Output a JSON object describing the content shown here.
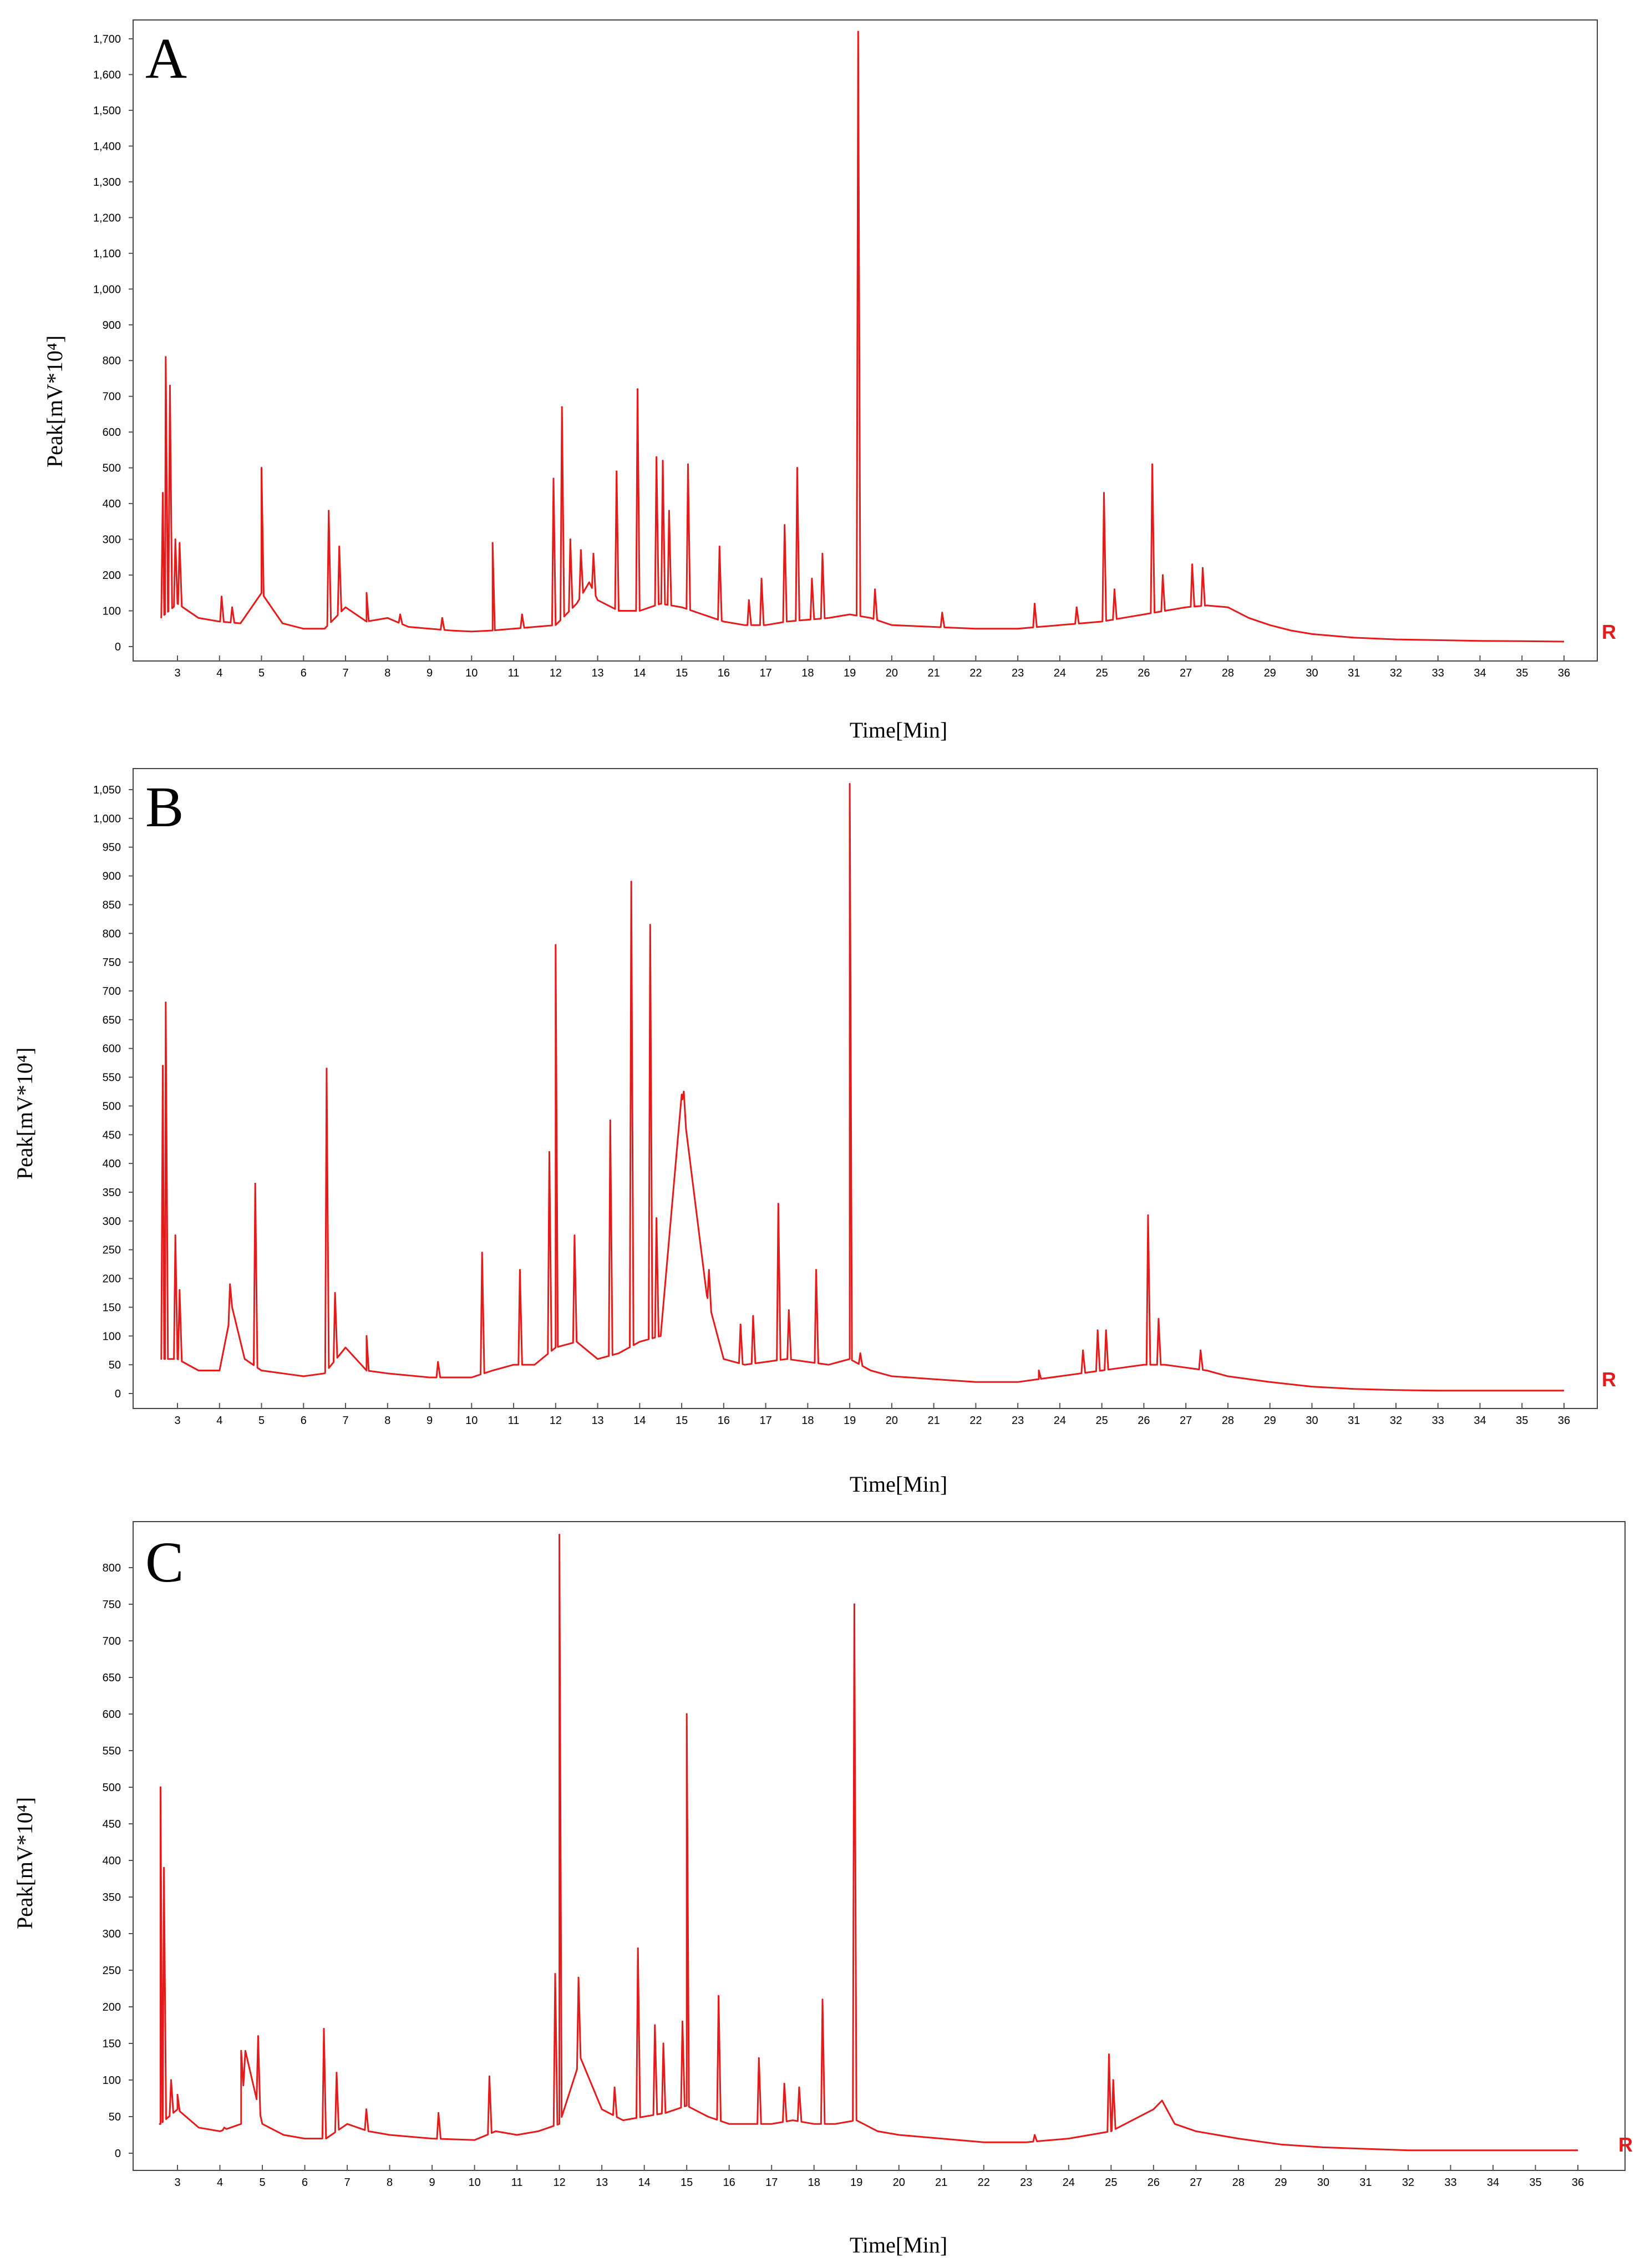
{
  "figure": {
    "line_color": "#e51a1a",
    "baseline_marker": "R"
  },
  "chart_data": [
    {
      "type": "line",
      "panel_label": "A",
      "xlabel": "Time[Min]",
      "ylabel": "Peak[mV*10⁴]",
      "xlim": [
        2.5,
        36.5
      ],
      "ylim": [
        0,
        1750
      ],
      "xticks": [
        3,
        4,
        5,
        6,
        7,
        8,
        9,
        10,
        11,
        12,
        13,
        14,
        15,
        16,
        17,
        18,
        19,
        20,
        21,
        22,
        23,
        24,
        25,
        26,
        27,
        28,
        29,
        30,
        31,
        32,
        33,
        34,
        35,
        36
      ],
      "yticks": [
        0,
        100,
        200,
        300,
        400,
        500,
        600,
        700,
        800,
        900,
        1000,
        1100,
        1200,
        1300,
        1400,
        1500,
        1600,
        1700
      ],
      "ytick_labels": [
        "0",
        "100",
        "200",
        "300",
        "400",
        "500",
        "600",
        "700",
        "800",
        "900",
        "1,000",
        "1,100",
        "1,200",
        "1,300",
        "1,400",
        "1,500",
        "1,600",
        "1,700"
      ],
      "baseline": [
        [
          2.6,
          80
        ],
        [
          3,
          120
        ],
        [
          3.5,
          80
        ],
        [
          4,
          70
        ],
        [
          4.5,
          65
        ],
        [
          5,
          150
        ],
        [
          5.5,
          65
        ],
        [
          6,
          50
        ],
        [
          6.5,
          50
        ],
        [
          7,
          110
        ],
        [
          7.5,
          70
        ],
        [
          8,
          80
        ],
        [
          8.5,
          55
        ],
        [
          9,
          50
        ],
        [
          9.5,
          45
        ],
        [
          10,
          42
        ],
        [
          10.5,
          45
        ],
        [
          11,
          50
        ],
        [
          11.5,
          55
        ],
        [
          12,
          60
        ],
        [
          12.5,
          120
        ],
        [
          12.8,
          180
        ],
        [
          13,
          130
        ],
        [
          13.5,
          100
        ],
        [
          14,
          100
        ],
        [
          14.5,
          120
        ],
        [
          15,
          110
        ],
        [
          15.5,
          90
        ],
        [
          16,
          70
        ],
        [
          16.5,
          60
        ],
        [
          17,
          60
        ],
        [
          17.5,
          70
        ],
        [
          18,
          75
        ],
        [
          18.5,
          80
        ],
        [
          19,
          90
        ],
        [
          19.5,
          80
        ],
        [
          20,
          60
        ],
        [
          21,
          55
        ],
        [
          22,
          50
        ],
        [
          23,
          50
        ],
        [
          23.5,
          55
        ],
        [
          24,
          60
        ],
        [
          24.5,
          65
        ],
        [
          25,
          70
        ],
        [
          25.5,
          80
        ],
        [
          26,
          90
        ],
        [
          26.5,
          100
        ],
        [
          27,
          110
        ],
        [
          27.5,
          115
        ],
        [
          28,
          110
        ],
        [
          28.5,
          80
        ],
        [
          29,
          60
        ],
        [
          29.5,
          45
        ],
        [
          30,
          35
        ],
        [
          31,
          25
        ],
        [
          32,
          20
        ],
        [
          33,
          18
        ],
        [
          34,
          16
        ],
        [
          35,
          15
        ],
        [
          36,
          14
        ]
      ],
      "peaks": [
        [
          2.65,
          430
        ],
        [
          2.72,
          810
        ],
        [
          2.82,
          730
        ],
        [
          2.95,
          300
        ],
        [
          3.05,
          290
        ],
        [
          4.05,
          140
        ],
        [
          4.3,
          110
        ],
        [
          5,
          500
        ],
        [
          6.6,
          380
        ],
        [
          6.85,
          280
        ],
        [
          7.5,
          150
        ],
        [
          8.3,
          90
        ],
        [
          9.3,
          80
        ],
        [
          10.5,
          290
        ],
        [
          11.2,
          90
        ],
        [
          11.95,
          470
        ],
        [
          12.15,
          670
        ],
        [
          12.35,
          300
        ],
        [
          12.6,
          270
        ],
        [
          12.9,
          260
        ],
        [
          13.45,
          490
        ],
        [
          13.95,
          720
        ],
        [
          14.4,
          530
        ],
        [
          14.55,
          520
        ],
        [
          14.7,
          380
        ],
        [
          15.15,
          510
        ],
        [
          15.9,
          280
        ],
        [
          16.6,
          130
        ],
        [
          16.9,
          190
        ],
        [
          17.45,
          340
        ],
        [
          17.75,
          500
        ],
        [
          18.1,
          190
        ],
        [
          18.35,
          260
        ],
        [
          19.2,
          1720
        ],
        [
          19.6,
          160
        ],
        [
          21.2,
          95
        ],
        [
          23.4,
          120
        ],
        [
          24.4,
          110
        ],
        [
          25.05,
          430
        ],
        [
          25.3,
          160
        ],
        [
          26.2,
          510
        ],
        [
          26.45,
          200
        ],
        [
          27.15,
          230
        ],
        [
          27.4,
          220
        ]
      ]
    },
    {
      "type": "line",
      "panel_label": "B",
      "xlabel": "Time[Min]",
      "ylabel": "Peak[mV*10⁴]",
      "xlim": [
        2.5,
        36.5
      ],
      "ylim": [
        0,
        1070
      ],
      "xticks": [
        3,
        4,
        5,
        6,
        7,
        8,
        9,
        10,
        11,
        12,
        13,
        14,
        15,
        16,
        17,
        18,
        19,
        20,
        21,
        22,
        23,
        24,
        25,
        26,
        27,
        28,
        29,
        30,
        31,
        32,
        33,
        34,
        35,
        36
      ],
      "yticks": [
        0,
        50,
        100,
        150,
        200,
        250,
        300,
        350,
        400,
        450,
        500,
        550,
        600,
        650,
        700,
        750,
        800,
        850,
        900,
        950,
        1000,
        1050
      ],
      "ytick_labels": [
        "0",
        "50",
        "100",
        "150",
        "200",
        "250",
        "300",
        "350",
        "400",
        "450",
        "500",
        "550",
        "600",
        "650",
        "700",
        "750",
        "800",
        "850",
        "900",
        "950",
        "1,000",
        "1,050"
      ],
      "baseline": [
        [
          2.6,
          60
        ],
        [
          3,
          60
        ],
        [
          3.5,
          40
        ],
        [
          4,
          40
        ],
        [
          4.3,
          150
        ],
        [
          4.6,
          60
        ],
        [
          5,
          40
        ],
        [
          5.5,
          35
        ],
        [
          6,
          30
        ],
        [
          6.5,
          35
        ],
        [
          7,
          80
        ],
        [
          7.5,
          40
        ],
        [
          8,
          35
        ],
        [
          9,
          28
        ],
        [
          10,
          28
        ],
        [
          10.5,
          40
        ],
        [
          11,
          50
        ],
        [
          11.5,
          50
        ],
        [
          12,
          80
        ],
        [
          12.5,
          90
        ],
        [
          13,
          60
        ],
        [
          13.5,
          70
        ],
        [
          14,
          90
        ],
        [
          14.5,
          100
        ],
        [
          15,
          520
        ],
        [
          15.6,
          170
        ],
        [
          16,
          60
        ],
        [
          16.5,
          50
        ],
        [
          17,
          55
        ],
        [
          17.5,
          60
        ],
        [
          18,
          55
        ],
        [
          18.5,
          50
        ],
        [
          19,
          60
        ],
        [
          19.5,
          40
        ],
        [
          20,
          30
        ],
        [
          21,
          25
        ],
        [
          22,
          20
        ],
        [
          23,
          20
        ],
        [
          23.5,
          25
        ],
        [
          24,
          30
        ],
        [
          24.5,
          35
        ],
        [
          25,
          40
        ],
        [
          25.5,
          45
        ],
        [
          26,
          50
        ],
        [
          26.5,
          50
        ],
        [
          27,
          45
        ],
        [
          27.5,
          40
        ],
        [
          28,
          30
        ],
        [
          29,
          20
        ],
        [
          30,
          12
        ],
        [
          31,
          8
        ],
        [
          32,
          6
        ],
        [
          33,
          5
        ],
        [
          34,
          5
        ],
        [
          35,
          5
        ],
        [
          36,
          5
        ]
      ],
      "peaks": [
        [
          2.65,
          570
        ],
        [
          2.72,
          680
        ],
        [
          2.95,
          275
        ],
        [
          3.05,
          180
        ],
        [
          4.25,
          190
        ],
        [
          4.85,
          365
        ],
        [
          6.55,
          565
        ],
        [
          6.75,
          175
        ],
        [
          7.5,
          100
        ],
        [
          9.2,
          55
        ],
        [
          10.25,
          245
        ],
        [
          11.15,
          215
        ],
        [
          11.85,
          420
        ],
        [
          12.0,
          780
        ],
        [
          12.45,
          275
        ],
        [
          13.3,
          475
        ],
        [
          13.8,
          890
        ],
        [
          14.25,
          815
        ],
        [
          14.4,
          305
        ],
        [
          15.05,
          525
        ],
        [
          15.65,
          215
        ],
        [
          16.4,
          120
        ],
        [
          16.7,
          135
        ],
        [
          17.3,
          330
        ],
        [
          17.55,
          145
        ],
        [
          18.2,
          215
        ],
        [
          19.0,
          1060
        ],
        [
          19.25,
          70
        ],
        [
          23.5,
          40
        ],
        [
          24.55,
          75
        ],
        [
          24.9,
          110
        ],
        [
          25.1,
          110
        ],
        [
          26.1,
          310
        ],
        [
          26.35,
          130
        ],
        [
          27.35,
          75
        ]
      ]
    },
    {
      "type": "line",
      "panel_label": "C",
      "xlabel": "Time[Min]",
      "ylabel": "Peak[mV*10⁴]",
      "xlim": [
        2.5,
        36.5
      ],
      "ylim": [
        0,
        850
      ],
      "xticks": [
        3,
        4,
        5,
        6,
        7,
        8,
        9,
        10,
        11,
        12,
        13,
        14,
        15,
        16,
        17,
        18,
        19,
        20,
        21,
        22,
        23,
        24,
        25,
        26,
        27,
        28,
        29,
        30,
        31,
        32,
        33,
        34,
        35,
        36
      ],
      "yticks": [
        0,
        50,
        100,
        150,
        200,
        250,
        300,
        350,
        400,
        450,
        500,
        550,
        600,
        650,
        700,
        750,
        800
      ],
      "ytick_labels": [
        "0",
        "50",
        "100",
        "150",
        "200",
        "250",
        "300",
        "350",
        "400",
        "450",
        "500",
        "550",
        "600",
        "650",
        "700",
        "750",
        "800"
      ],
      "baseline": [
        [
          2.6,
          40
        ],
        [
          3,
          60
        ],
        [
          3.5,
          35
        ],
        [
          4,
          30
        ],
        [
          4.5,
          40
        ],
        [
          4.6,
          140
        ],
        [
          5,
          40
        ],
        [
          5.5,
          25
        ],
        [
          6,
          20
        ],
        [
          6.5,
          20
        ],
        [
          7,
          40
        ],
        [
          7.5,
          30
        ],
        [
          8,
          25
        ],
        [
          9,
          20
        ],
        [
          10,
          18
        ],
        [
          10.5,
          30
        ],
        [
          11,
          25
        ],
        [
          11.5,
          30
        ],
        [
          12,
          40
        ],
        [
          12.5,
          130
        ],
        [
          13,
          60
        ],
        [
          13.5,
          45
        ],
        [
          14,
          50
        ],
        [
          14.5,
          55
        ],
        [
          15,
          65
        ],
        [
          15.5,
          50
        ],
        [
          16,
          40
        ],
        [
          16.5,
          40
        ],
        [
          17,
          40
        ],
        [
          17.5,
          45
        ],
        [
          18,
          40
        ],
        [
          18.5,
          40
        ],
        [
          19,
          45
        ],
        [
          19.5,
          30
        ],
        [
          20,
          25
        ],
        [
          21,
          20
        ],
        [
          22,
          15
        ],
        [
          23,
          15
        ],
        [
          24,
          20
        ],
        [
          25,
          30
        ],
        [
          25.5,
          45
        ],
        [
          26,
          60
        ],
        [
          26.2,
          72
        ],
        [
          26.5,
          40
        ],
        [
          27,
          30
        ],
        [
          27.5,
          25
        ],
        [
          28,
          20
        ],
        [
          29,
          12
        ],
        [
          30,
          8
        ],
        [
          31,
          6
        ],
        [
          32,
          4
        ],
        [
          33,
          4
        ],
        [
          34,
          4
        ],
        [
          35,
          4
        ],
        [
          36,
          4
        ]
      ],
      "peaks": [
        [
          2.6,
          500
        ],
        [
          2.68,
          390
        ],
        [
          2.85,
          100
        ],
        [
          3.0,
          80
        ],
        [
          4.1,
          35
        ],
        [
          4.5,
          140
        ],
        [
          4.9,
          160
        ],
        [
          6.45,
          170
        ],
        [
          6.75,
          110
        ],
        [
          7.45,
          60
        ],
        [
          9.15,
          55
        ],
        [
          10.35,
          105
        ],
        [
          11.9,
          245
        ],
        [
          12.0,
          845
        ],
        [
          12.45,
          240
        ],
        [
          13.3,
          90
        ],
        [
          13.85,
          280
        ],
        [
          14.25,
          175
        ],
        [
          14.45,
          150
        ],
        [
          14.9,
          180
        ],
        [
          15.0,
          600
        ],
        [
          15.75,
          215
        ],
        [
          16.7,
          130
        ],
        [
          17.3,
          95
        ],
        [
          17.65,
          90
        ],
        [
          18.2,
          210
        ],
        [
          18.95,
          750
        ],
        [
          23.2,
          25
        ],
        [
          24.95,
          135
        ],
        [
          25.05,
          100
        ]
      ]
    }
  ]
}
